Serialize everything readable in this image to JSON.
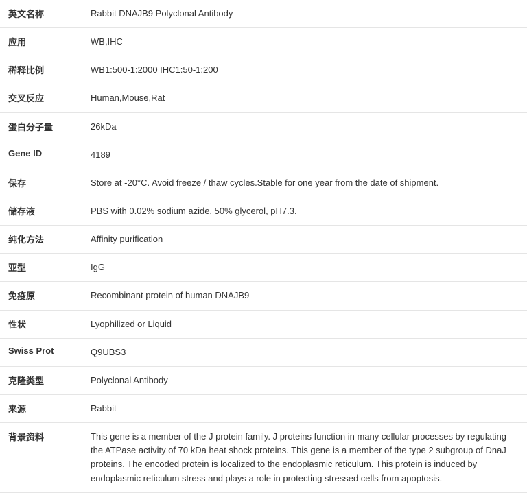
{
  "rows": [
    {
      "label": "英文名称",
      "value": "Rabbit DNAJB9 Polyclonal Antibody"
    },
    {
      "label": "应用",
      "value": "WB,IHC"
    },
    {
      "label": "稀释比例",
      "value": "WB1:500-1:2000 IHC1:50-1:200"
    },
    {
      "label": "交叉反应",
      "value": "Human,Mouse,Rat"
    },
    {
      "label": "蛋白分子量",
      "value": "26kDa"
    },
    {
      "label": "Gene ID",
      "value": "4189"
    },
    {
      "label": "保存",
      "value": "Store at -20°C. Avoid freeze / thaw cycles.Stable for one year from the date of shipment."
    },
    {
      "label": "储存液",
      "value": "PBS with 0.02% sodium azide, 50% glycerol, pH7.3."
    },
    {
      "label": "纯化方法",
      "value": "Affinity purification"
    },
    {
      "label": "亚型",
      "value": "IgG"
    },
    {
      "label": "免疫原",
      "value": "Recombinant protein of human DNAJB9"
    },
    {
      "label": "性状",
      "value": "Lyophilized or Liquid"
    },
    {
      "label": "Swiss Prot",
      "value": "Q9UBS3"
    },
    {
      "label": "克隆类型",
      "value": "Polyclonal Antibody"
    },
    {
      "label": "来源",
      "value": "Rabbit"
    },
    {
      "label": "背景资料",
      "value": "This gene is a member of the J protein family. J proteins function in many cellular processes by regulating the ATPase activity of 70 kDa heat shock proteins. This gene is a member of the type 2 subgroup of DnaJ proteins. The encoded protein is localized to the endoplasmic reticulum. This protein is induced by endoplasmic reticulum stress and plays a role in protecting stressed cells from apoptosis."
    }
  ]
}
